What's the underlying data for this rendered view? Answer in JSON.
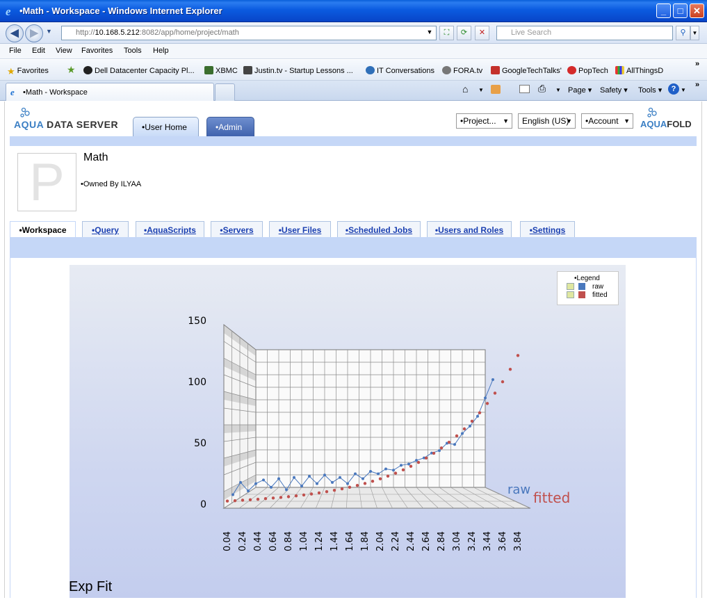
{
  "window": {
    "title": "•Math - Workspace - Windows Internet Explorer"
  },
  "browser": {
    "url_prefix": "http://",
    "url_host": "10.168.5.212",
    "url_rest": ":8082/app/home/project/math",
    "search_placeholder": "Live Search",
    "menu": [
      "File",
      "Edit",
      "View",
      "Favorites",
      "Tools",
      "Help"
    ],
    "favorites_label": "Favorites",
    "favorites": [
      "Dell Datacenter Capacity Pl...",
      "XBMC",
      "Justin.tv - Startup Lessons ...",
      "IT Conversations",
      "FORA.tv",
      "GoogleTechTalks'",
      "PopTech",
      "AllThingsD"
    ],
    "tab_title": "•Math - Workspace",
    "toolbar": {
      "page": "Page",
      "safety": "Safety",
      "tools": "Tools"
    }
  },
  "app": {
    "logo_left_a": "AQUA",
    "logo_left_b": "DATA SERVER",
    "logo_right_a": "AQUA",
    "logo_right_b": "FOLD",
    "tabs": [
      "•User Home",
      "•Admin"
    ],
    "dropdowns": {
      "project": "•Project...",
      "language": "English (US)",
      "account": "•Account"
    }
  },
  "project": {
    "avatar_letter": "P",
    "name": "Math",
    "owner": "•Owned By ILYAA",
    "tabs": [
      "•Workspace",
      "•Query",
      "•AquaScripts",
      "•Servers",
      "•User Files",
      "•Scheduled Jobs",
      "•Users and Roles",
      "•Settings"
    ]
  },
  "chart_data": {
    "type": "line",
    "title": "Exp Fit",
    "legend_title": "•Legend",
    "ylim": [
      0,
      150
    ],
    "yticks": [
      "0",
      "50",
      "100",
      "150"
    ],
    "xticks": [
      "0.04",
      "0.24",
      "0.44",
      "0.64",
      "0.84",
      "1.04",
      "1.24",
      "1.44",
      "1.64",
      "1.84",
      "2.04",
      "2.24",
      "2.44",
      "2.64",
      "2.84",
      "3.04",
      "3.24",
      "3.44",
      "3.64",
      "3.84"
    ],
    "series": [
      {
        "name": "raw",
        "color": "#4a78bd",
        "x": [
          0.04,
          0.14,
          0.24,
          0.34,
          0.44,
          0.54,
          0.64,
          0.74,
          0.84,
          0.94,
          1.04,
          1.14,
          1.24,
          1.34,
          1.44,
          1.54,
          1.64,
          1.74,
          1.84,
          1.94,
          2.04,
          2.14,
          2.24,
          2.34,
          2.44,
          2.54,
          2.64,
          2.74,
          2.84,
          2.94,
          3.04,
          3.14,
          3.24,
          3.34,
          3.44
        ],
        "y": [
          6,
          16,
          9,
          15,
          18,
          12,
          19,
          10,
          20,
          13,
          21,
          15,
          22,
          16,
          20,
          15,
          23,
          19,
          25,
          23,
          27,
          26,
          30,
          31,
          34,
          36,
          40,
          42,
          48,
          47,
          56,
          62,
          70,
          85,
          100
        ]
      },
      {
        "name": "fitted",
        "color": "#c0504d",
        "x": [
          0.04,
          0.14,
          0.24,
          0.34,
          0.44,
          0.54,
          0.64,
          0.74,
          0.84,
          0.94,
          1.04,
          1.14,
          1.24,
          1.34,
          1.44,
          1.54,
          1.64,
          1.74,
          1.84,
          1.94,
          2.04,
          2.14,
          2.24,
          2.34,
          2.44,
          2.54,
          2.64,
          2.74,
          2.84,
          2.94,
          3.04,
          3.14,
          3.24,
          3.34,
          3.44,
          3.54,
          3.64,
          3.74,
          3.84
        ],
        "y": [
          3,
          3.3,
          3.7,
          4.1,
          4.5,
          5,
          5.5,
          6,
          6.6,
          7.3,
          8,
          8.8,
          9.7,
          10.7,
          11.8,
          13,
          14.3,
          15.8,
          17.4,
          19.2,
          21.2,
          23.4,
          25.8,
          28.5,
          31.4,
          34.6,
          38.2,
          42.1,
          46.4,
          51.1,
          56.3,
          62,
          68.3,
          75.2,
          82.8,
          91.2,
          100.5,
          110.7,
          122
        ]
      }
    ]
  }
}
